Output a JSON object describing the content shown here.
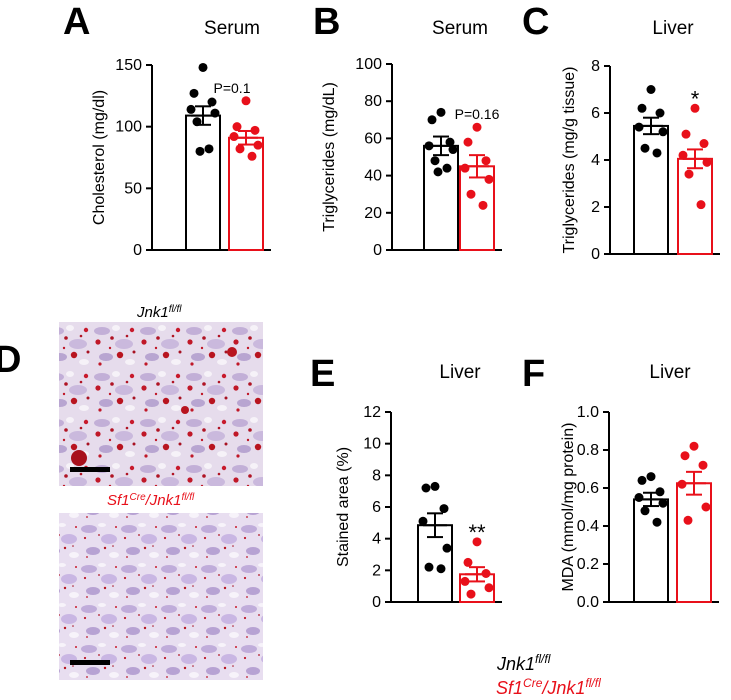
{
  "panels": {
    "A": "A",
    "B": "B",
    "C": "C",
    "D": "D",
    "E": "E",
    "F": "F"
  },
  "images": {
    "control_label": "Jnk1",
    "control_sup": "fl/fl",
    "ko_label_a": "Sf1",
    "ko_sup_a": "Cre",
    "ko_label_b": "/Jnk1",
    "ko_sup_b": "fl/fl"
  },
  "legend": {
    "control_label": "Jnk1",
    "control_sup": "fl/fl",
    "ko_label_a": "Sf1",
    "ko_sup_a": "Cre",
    "ko_label_b": "/Jnk1",
    "ko_sup_b": "fl/fl",
    "control_color": "#000000",
    "ko_color": "#e8101a"
  },
  "chart_data": [
    {
      "id": "A",
      "type": "bar",
      "title": "Serum",
      "ylabel": "Cholesterol (mg/dl)",
      "ylim": [
        0,
        150
      ],
      "yticks": [
        0,
        50,
        100,
        150
      ],
      "series": [
        {
          "name": "Jnk1 fl/fl",
          "mean": 109,
          "sem": 7.5,
          "points": [
            148,
            127,
            120,
            114,
            111,
            104,
            82,
            80
          ]
        },
        {
          "name": "Sf1Cre/Jnk1 fl/fl",
          "mean": 91,
          "sem": 5.5,
          "points": [
            121,
            100,
            97,
            92,
            85,
            82,
            76
          ]
        }
      ],
      "annotation": "P=0.1"
    },
    {
      "id": "B",
      "type": "bar",
      "title": "Serum",
      "ylabel": "Triglycerides (mg/dL)",
      "ylim": [
        0,
        100
      ],
      "yticks": [
        0,
        20,
        40,
        60,
        80,
        100
      ],
      "series": [
        {
          "name": "Jnk1 fl/fl",
          "mean": 56,
          "sem": 5,
          "points": [
            74,
            70,
            58,
            56,
            54,
            48,
            44,
            42
          ]
        },
        {
          "name": "Sf1Cre/Jnk1 fl/fl",
          "mean": 45,
          "sem": 6,
          "points": [
            66,
            58,
            48,
            44,
            38,
            30,
            24
          ]
        }
      ],
      "annotation": "P=0.16"
    },
    {
      "id": "C",
      "type": "bar",
      "title": "Liver",
      "ylabel": "Triglycerides (mg/g tissue)",
      "ylim": [
        0,
        8
      ],
      "yticks": [
        0,
        2,
        4,
        6,
        8
      ],
      "series": [
        {
          "name": "Jnk1 fl/fl",
          "mean": 5.45,
          "sem": 0.35,
          "points": [
            7.0,
            6.2,
            6.0,
            5.4,
            5.2,
            4.5,
            4.3
          ]
        },
        {
          "name": "Sf1Cre/Jnk1 fl/fl",
          "mean": 4.05,
          "sem": 0.4,
          "points": [
            6.2,
            5.1,
            4.7,
            4.2,
            3.9,
            3.4,
            2.1
          ]
        }
      ],
      "annotation": "*"
    },
    {
      "id": "E",
      "type": "bar",
      "title": "Liver",
      "ylabel": "Stained area (%)",
      "ylim": [
        0,
        12
      ],
      "yticks": [
        0,
        2,
        4,
        6,
        8,
        10,
        12
      ],
      "series": [
        {
          "name": "Jnk1 fl/fl",
          "mean": 4.85,
          "sem": 0.75,
          "points": [
            7.3,
            7.2,
            5.9,
            5.1,
            3.4,
            2.2,
            2.1
          ]
        },
        {
          "name": "Sf1Cre/Jnk1 fl/fl",
          "mean": 1.75,
          "sem": 0.45,
          "points": [
            3.8,
            2.5,
            1.8,
            1.3,
            0.9,
            0.5
          ]
        }
      ],
      "annotation": "**"
    },
    {
      "id": "F",
      "type": "bar",
      "title": "Liver",
      "ylabel": "MDA (mmol/mg protein)",
      "ylim": [
        0,
        1.0
      ],
      "yticks": [
        "0.0",
        "0.2",
        "0.4",
        "0.6",
        "0.8",
        "1.0"
      ],
      "series": [
        {
          "name": "Jnk1 fl/fl",
          "mean": 0.54,
          "sem": 0.035,
          "points": [
            0.66,
            0.64,
            0.58,
            0.55,
            0.52,
            0.48,
            0.42
          ]
        },
        {
          "name": "Sf1Cre/Jnk1 fl/fl",
          "mean": 0.625,
          "sem": 0.06,
          "points": [
            0.82,
            0.77,
            0.72,
            0.62,
            0.5,
            0.43
          ]
        }
      ],
      "annotation": ""
    }
  ]
}
